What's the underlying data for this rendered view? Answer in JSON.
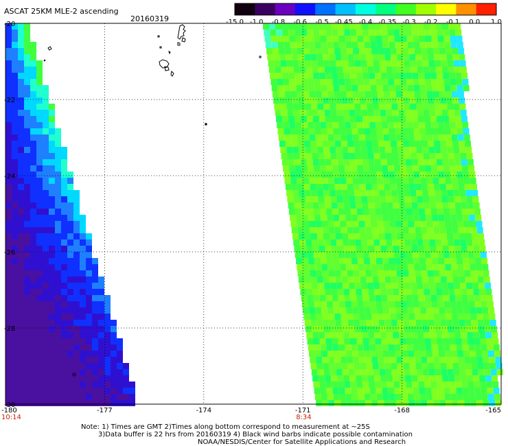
{
  "header": {
    "title": "ASCAT 25KM MLE-2 ascending",
    "date": "20160319"
  },
  "colorbar": {
    "labels": [
      "-15.0",
      "-1.0",
      "-0.8",
      "-0.6",
      "-0.5",
      "-0.45",
      "-0.4",
      "-0.35",
      "-0.3",
      "-0.2",
      "-0.1",
      "0.0",
      "1.0"
    ],
    "colors": [
      "#100010",
      "#3a0060",
      "#6a00c0",
      "#1010ff",
      "#0070ff",
      "#00c0ff",
      "#00ffe0",
      "#00ff80",
      "#40ff20",
      "#a0ff00",
      "#ffff00",
      "#ff9000",
      "#ff2000"
    ]
  },
  "map": {
    "lon_range": [
      -180,
      -165
    ],
    "lat_range": [
      -30,
      -20
    ],
    "lat_labels": [
      "-20",
      "-22",
      "-24",
      "-26",
      "-28",
      "-30"
    ],
    "lon_labels": [
      "-180",
      "-177",
      "-174",
      "-171",
      "-168",
      "-165"
    ],
    "time_labels": [
      {
        "text": "10:14",
        "lon": -180
      },
      {
        "text": "8:34",
        "lon": -171
      }
    ],
    "time_color": "#cc2200"
  },
  "notes": {
    "line1": "Note: 1) Times are GMT 2)Times along bottom correspond to measurement at ~25S",
    "line2": "3)Data buffer is 22 hrs from 20160319 4) Black wind barbs indicate possible contamination",
    "line3": "NOAA/NESDIS/Center for Satellite Applications and Research"
  }
}
